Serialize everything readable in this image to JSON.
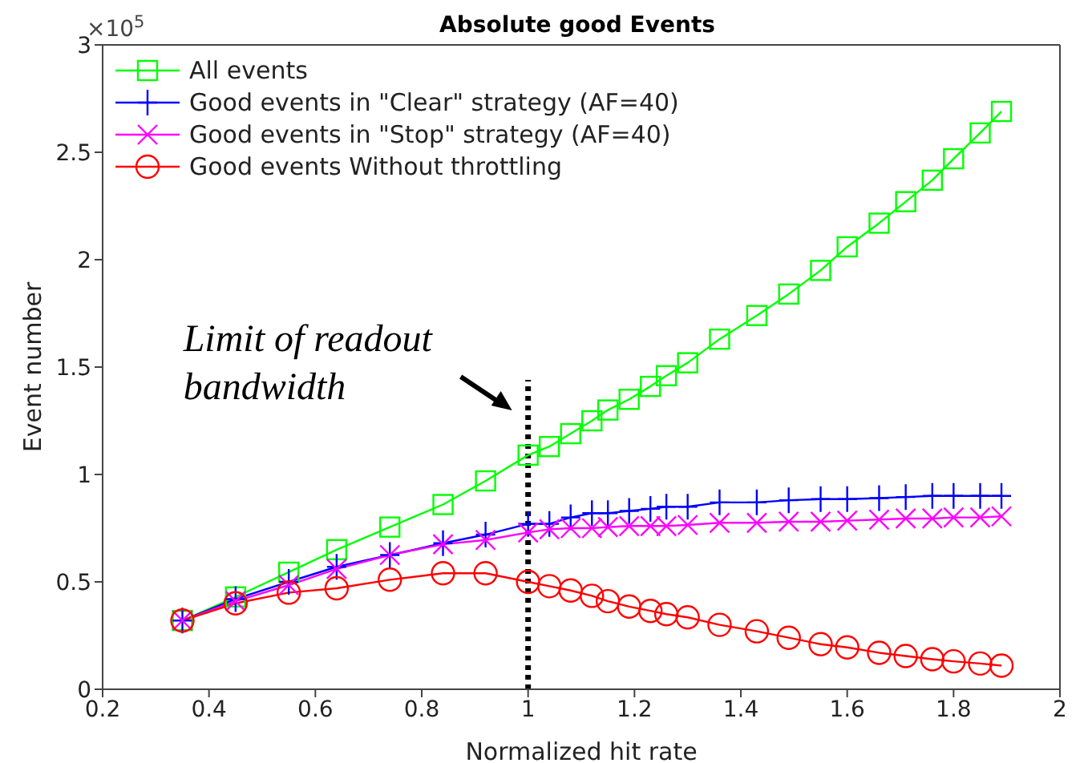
{
  "chart_data": {
    "type": "line",
    "title": "Absolute good Events",
    "xlabel": "Normalized hit rate",
    "ylabel": "Event number",
    "annotations": [
      "×10$^{5}$"
    ],
    "x": [
      0.35,
      0.45,
      0.55,
      0.64,
      0.74,
      0.84,
      0.92,
      1.0,
      1.04,
      1.08,
      1.12,
      1.15,
      1.19,
      1.23,
      1.26,
      1.3,
      1.36,
      1.43,
      1.49,
      1.55,
      1.6,
      1.66,
      1.71,
      1.76,
      1.8,
      1.85,
      1.89
    ],
    "series": [
      {
        "name": "All events",
        "color": "#00ff00",
        "marker": "square",
        "values": [
          0.32,
          0.43,
          0.545,
          0.65,
          0.755,
          0.86,
          0.97,
          1.09,
          1.13,
          1.19,
          1.25,
          1.3,
          1.35,
          1.41,
          1.46,
          1.52,
          1.63,
          1.74,
          1.84,
          1.95,
          2.06,
          2.17,
          2.27,
          2.37,
          2.47,
          2.59,
          2.69
        ]
      },
      {
        "name": "Good events in \"Clear\" strategy (AF=40)",
        "color": "#0000ff",
        "marker": "plus",
        "values": [
          0.32,
          0.42,
          0.5,
          0.57,
          0.625,
          0.68,
          0.72,
          0.77,
          0.77,
          0.8,
          0.82,
          0.82,
          0.83,
          0.84,
          0.85,
          0.85,
          0.87,
          0.87,
          0.88,
          0.885,
          0.885,
          0.89,
          0.895,
          0.9,
          0.9,
          0.9,
          0.9
        ]
      },
      {
        "name": "Good events in \"Stop\" strategy (AF=40)",
        "color": "#ff00ff",
        "marker": "cross",
        "values": [
          0.32,
          0.41,
          0.485,
          0.56,
          0.625,
          0.675,
          0.695,
          0.73,
          0.745,
          0.75,
          0.75,
          0.755,
          0.76,
          0.76,
          0.76,
          0.765,
          0.775,
          0.775,
          0.78,
          0.78,
          0.785,
          0.79,
          0.795,
          0.795,
          0.8,
          0.8,
          0.805
        ]
      },
      {
        "name": "Good events Without throttling",
        "color": "#ff0000",
        "marker": "circle",
        "values": [
          0.32,
          0.4,
          0.45,
          0.47,
          0.51,
          0.54,
          0.54,
          0.5,
          0.48,
          0.46,
          0.435,
          0.41,
          0.385,
          0.365,
          0.35,
          0.335,
          0.3,
          0.27,
          0.24,
          0.21,
          0.195,
          0.17,
          0.155,
          0.14,
          0.13,
          0.12,
          0.11
        ]
      }
    ],
    "xlim": [
      0.2,
      2
    ],
    "xticks": [
      0.2,
      0.4,
      0.6,
      0.8,
      1,
      1.2,
      1.4,
      1.6,
      1.8,
      2
    ],
    "ylim": [
      0,
      3
    ],
    "yticks": [
      0,
      0.5,
      1,
      1.5,
      2,
      2.5,
      3
    ],
    "ref_lines": [
      {
        "axis": "x",
        "value": 1,
        "label": "Limit of readout bandwidth",
        "color": "#000000",
        "line_style": "dotted"
      }
    ],
    "grid": false,
    "legend": "top left",
    "line_style": "solid"
  }
}
